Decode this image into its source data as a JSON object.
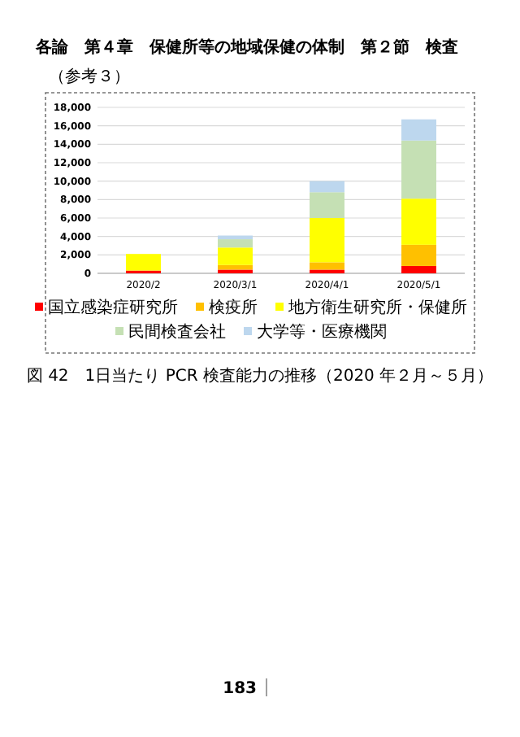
{
  "chart_data": {
    "type": "bar",
    "title": "図 42　1日当たり PCR 検査能力の推移（2020 年２月～５月）",
    "annotations": [
      "各論　第４章　保健所等の地域保健の体制　第２節　検査",
      "（参考３）",
      "183"
    ],
    "categories": [
      "2020/2",
      "2020/3/1",
      "2020/4/1",
      "2020/5/1"
    ],
    "stacked": true,
    "series": [
      {
        "name": "国立感染症研究所",
        "color": "#ff0000",
        "values": [
          300,
          400,
          400,
          800
        ]
      },
      {
        "name": "検疫所",
        "color": "#ffc000",
        "values": [
          0,
          500,
          800,
          2300
        ]
      },
      {
        "name": "地方衛生研究所・保健所",
        "color": "#ffff00",
        "values": [
          1800,
          1900,
          4800,
          5000
        ]
      },
      {
        "name": "民間検査会社",
        "color": "#c5e0b4",
        "values": [
          0,
          900,
          2800,
          6300
        ]
      },
      {
        "name": "大学等・医療機関",
        "color": "#bdd7ee",
        "values": [
          0,
          400,
          1200,
          2300
        ]
      }
    ],
    "ylim": [
      0,
      18000
    ],
    "yticks": [
      0,
      {
        "value": 2000,
        "label": "2,000"
      },
      {
        "value": 4000,
        "label": "4,000"
      },
      {
        "value": 6000,
        "label": "6,000"
      },
      {
        "value": 8000,
        "label": "8,000"
      },
      {
        "value": 10000,
        "label": "10,000"
      },
      {
        "value": 12000,
        "label": "12,000"
      },
      {
        "value": 14000,
        "label": "14,000"
      },
      {
        "value": 16000,
        "label": "16,000"
      },
      {
        "value": 18000,
        "label": "18,000"
      }
    ],
    "grid": "y",
    "legend": "bottom"
  }
}
